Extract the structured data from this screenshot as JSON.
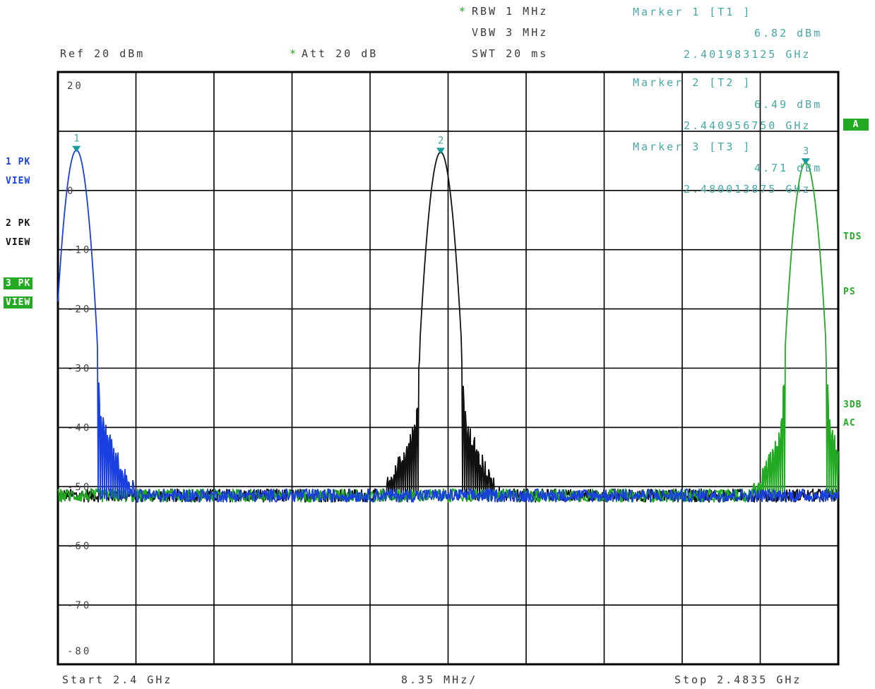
{
  "header": {
    "rbw_star": "*",
    "rbw": "RBW 1 MHz",
    "vbw": "VBW 3 MHz",
    "swt": "SWT 20 ms",
    "ref": "Ref 20 dBm",
    "att_star": "*",
    "att": "Att 20 dB"
  },
  "markers": [
    {
      "title": "Marker 1 [T1 ]",
      "level": "6.82 dBm",
      "freq": "2.401983125 GHz"
    },
    {
      "title": "Marker 2 [T2 ]",
      "level": "6.49 dBm",
      "freq": "2.440956750 GHz"
    },
    {
      "title": "Marker 3 [T3 ]",
      "level": "4.71 dBm",
      "freq": "2.480013875 GHz"
    }
  ],
  "left_panel": {
    "trace1": "1 PK",
    "trace1_view": "VIEW",
    "trace2": "2 PK",
    "trace2_view": "VIEW",
    "trace3": "3 PK",
    "trace3_view": "VIEW"
  },
  "right_panel": {
    "a_badge": "A",
    "tds": "TDS",
    "ps": "PS",
    "db3": "3DB",
    "ac": "AC"
  },
  "footer": {
    "start": "Start 2.4 GHz",
    "span": "8.35 MHz/",
    "stop": "Stop 2.4835 GHz"
  },
  "colors": {
    "trace1": "#1a3fe0",
    "trace2": "#111111",
    "trace3": "#22aa22",
    "marker": "#1a9a9a",
    "marker_text": "#45a8a8"
  },
  "chart_data": {
    "type": "line",
    "xlim": [
      2.4,
      2.4835
    ],
    "ylim": [
      -80,
      20
    ],
    "x_unit": "GHz",
    "y_unit": "dBm",
    "y_ticks": [
      20,
      10,
      0,
      -10,
      -20,
      -30,
      -40,
      -50,
      -60,
      -70,
      -80
    ],
    "y_tick_labels": [
      "20",
      "",
      "0",
      "-10",
      "-20",
      "-30",
      "-40",
      "-50",
      "-60",
      "-70",
      "-80"
    ],
    "grid": true,
    "noise_floor": -51.5,
    "series": [
      {
        "peak_x": 2.401983125,
        "peak_y": 6.82
      },
      {
        "peak_x": 2.44095675,
        "peak_y": 6.49
      },
      {
        "peak_x": 2.480013875,
        "peak_y": 4.71
      }
    ],
    "markers": [
      {
        "label": "1",
        "x": 2.401983125,
        "y": 6.82
      },
      {
        "label": "2",
        "x": 2.44095675,
        "y": 6.49
      },
      {
        "label": "3",
        "x": 2.480013875,
        "y": 4.71
      }
    ]
  }
}
